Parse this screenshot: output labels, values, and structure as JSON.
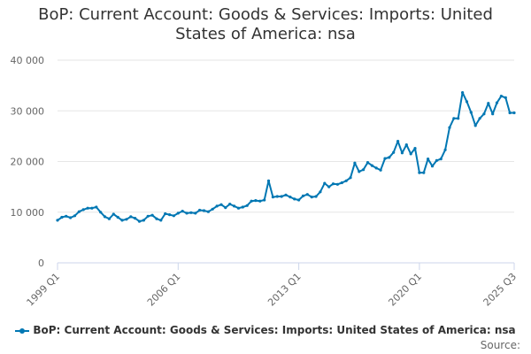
{
  "page": {
    "title_line1": "BoP: Current Account: Goods & Services: Imports: United",
    "title_line2": "States of America: nsa",
    "source_label": "Source:"
  },
  "colors": {
    "series": "#0077b3",
    "grid": "#e6e6e6",
    "axis": "#ccd6eb",
    "text": "#333333",
    "tick": "#666666"
  },
  "chart_data": {
    "type": "line",
    "title": "BoP: Current Account: Goods & Services: Imports: United States of America: nsa",
    "xlabel": "",
    "ylabel": "",
    "ylim": [
      0,
      40000
    ],
    "yticks": [
      0,
      10000,
      20000,
      30000,
      40000
    ],
    "ytick_labels": [
      "0",
      "10 000",
      "20 000",
      "30 000",
      "40 000"
    ],
    "xtick_labels": [
      "1999 Q1",
      "2006 Q1",
      "2013 Q1",
      "2020 Q1",
      "2025 Q3"
    ],
    "xtick_index": [
      0,
      28,
      56,
      84,
      106
    ],
    "grid": true,
    "legend": "bottom",
    "series": [
      {
        "name": "BoP: Current Account: Goods & Services: Imports: United States of America: nsa",
        "x": [
          "1999 Q1",
          "1999 Q2",
          "1999 Q3",
          "1999 Q4",
          "2000 Q1",
          "2000 Q2",
          "2000 Q3",
          "2000 Q4",
          "2001 Q1",
          "2001 Q2",
          "2001 Q3",
          "2001 Q4",
          "2002 Q1",
          "2002 Q2",
          "2002 Q3",
          "2002 Q4",
          "2003 Q1",
          "2003 Q2",
          "2003 Q3",
          "2003 Q4",
          "2004 Q1",
          "2004 Q2",
          "2004 Q3",
          "2004 Q4",
          "2005 Q1",
          "2005 Q2",
          "2005 Q3",
          "2005 Q4",
          "2006 Q1",
          "2006 Q2",
          "2006 Q3",
          "2006 Q4",
          "2007 Q1",
          "2007 Q2",
          "2007 Q3",
          "2007 Q4",
          "2008 Q1",
          "2008 Q2",
          "2008 Q3",
          "2008 Q4",
          "2009 Q1",
          "2009 Q2",
          "2009 Q3",
          "2009 Q4",
          "2010 Q1",
          "2010 Q2",
          "2010 Q3",
          "2010 Q4",
          "2011 Q1",
          "2011 Q2",
          "2011 Q3",
          "2011 Q4",
          "2012 Q1",
          "2012 Q2",
          "2012 Q3",
          "2012 Q4",
          "2013 Q1",
          "2013 Q2",
          "2013 Q3",
          "2013 Q4",
          "2014 Q1",
          "2014 Q2",
          "2014 Q3",
          "2014 Q4",
          "2015 Q1",
          "2015 Q2",
          "2015 Q3",
          "2015 Q4",
          "2016 Q1",
          "2016 Q2",
          "2016 Q3",
          "2016 Q4",
          "2017 Q1",
          "2017 Q2",
          "2017 Q3",
          "2017 Q4",
          "2018 Q1",
          "2018 Q2",
          "2018 Q3",
          "2018 Q4",
          "2019 Q1",
          "2019 Q2",
          "2019 Q3",
          "2019 Q4",
          "2020 Q1",
          "2020 Q2",
          "2020 Q3",
          "2020 Q4",
          "2021 Q1",
          "2021 Q2",
          "2021 Q3",
          "2021 Q4",
          "2022 Q1",
          "2022 Q2",
          "2022 Q3",
          "2022 Q4",
          "2023 Q1",
          "2023 Q2",
          "2023 Q3",
          "2023 Q4",
          "2024 Q1",
          "2024 Q2",
          "2024 Q3",
          "2024 Q4",
          "2025 Q1",
          "2025 Q2",
          "2025 Q3"
        ],
        "values": [
          8400,
          9000,
          9200,
          8900,
          9300,
          10100,
          10500,
          10800,
          10800,
          11000,
          10000,
          9100,
          8700,
          9600,
          9000,
          8400,
          8600,
          9100,
          8800,
          8200,
          8400,
          9200,
          9400,
          8700,
          8400,
          9700,
          9500,
          9300,
          9800,
          10200,
          9800,
          9900,
          9800,
          10400,
          10300,
          10100,
          10600,
          11200,
          11500,
          10900,
          11600,
          11200,
          10800,
          11000,
          11300,
          12200,
          12300,
          12200,
          12400,
          16200,
          13000,
          13100,
          13100,
          13400,
          13000,
          12600,
          12400,
          13200,
          13500,
          13000,
          13100,
          14000,
          15700,
          15000,
          15600,
          15500,
          15800,
          16200,
          16800,
          19700,
          18000,
          18400,
          19800,
          19200,
          18700,
          18300,
          20600,
          20800,
          21800,
          24000,
          21700,
          23300,
          21500,
          22600,
          17800,
          17800,
          20500,
          19100,
          20200,
          20500,
          22300,
          26700,
          28500,
          28500,
          33600,
          31800,
          29700,
          27100,
          28500,
          29400,
          31500,
          29400,
          31600,
          32900,
          32600,
          29600,
          29600
        ]
      }
    ]
  }
}
